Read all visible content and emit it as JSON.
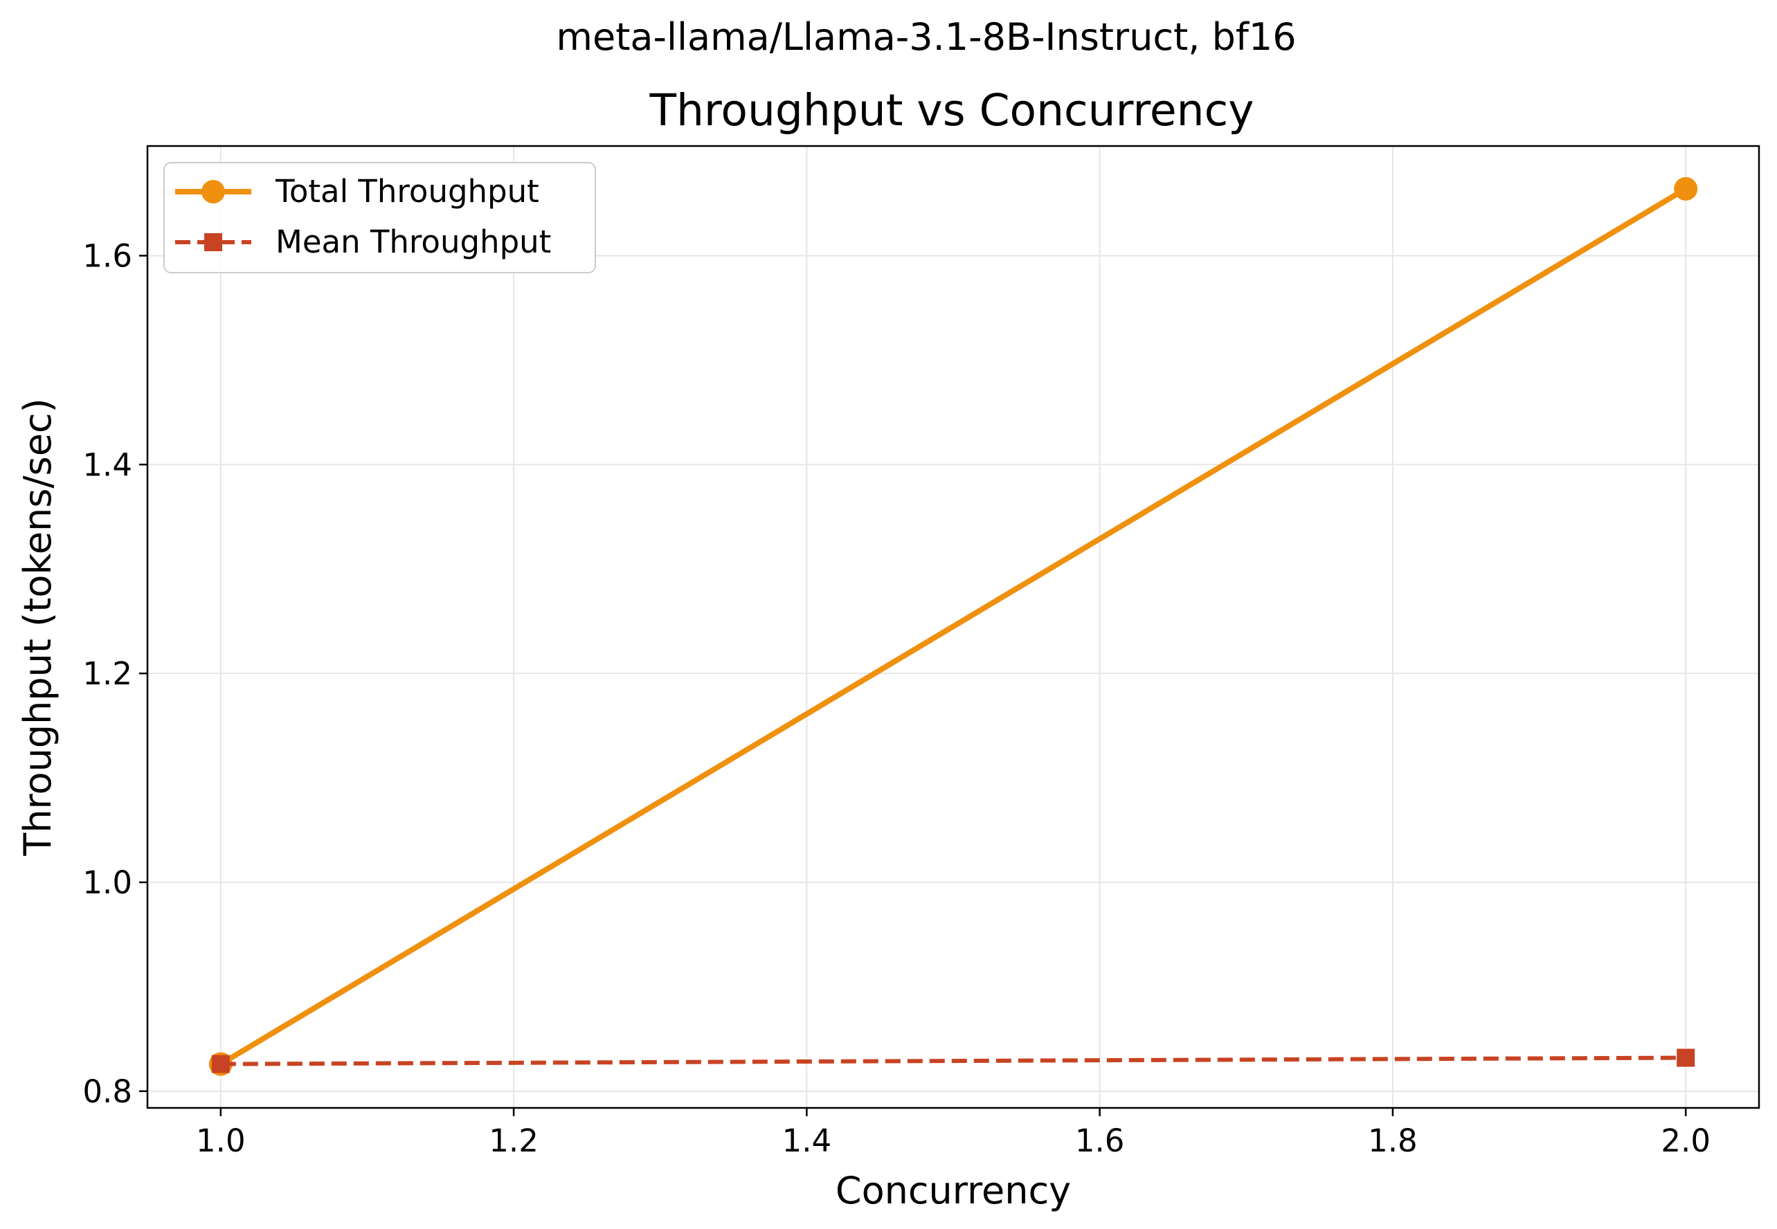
{
  "chart_data": {
    "type": "line",
    "suptitle": "meta-llama/Llama-3.1-8B-Instruct, bf16",
    "title": "Throughput vs Concurrency",
    "xlabel": "Concurrency",
    "ylabel": "Throughput (tokens/sec)",
    "xlim": [
      0.95,
      2.05
    ],
    "ylim": [
      0.784,
      1.705
    ],
    "xticks": [
      "1.0",
      "1.2",
      "1.4",
      "1.6",
      "1.8",
      "2.0"
    ],
    "yticks": [
      "0.8",
      "1.0",
      "1.2",
      "1.4",
      "1.6"
    ],
    "grid": true,
    "legend_position": "upper-left",
    "x": [
      1.0,
      2.0
    ],
    "series": [
      {
        "name": "Total Throughput",
        "values": [
          0.826,
          1.664
        ],
        "color": "#f0900f",
        "linestyle": "solid",
        "marker": "circle"
      },
      {
        "name": "Mean Throughput",
        "values": [
          0.826,
          0.832
        ],
        "color": "#c84323",
        "linestyle": "dashed",
        "marker": "square"
      }
    ]
  }
}
